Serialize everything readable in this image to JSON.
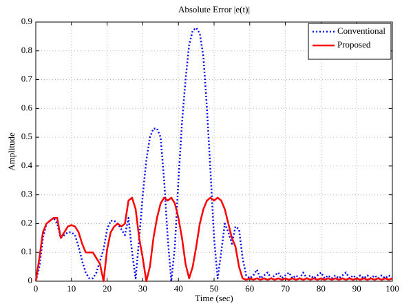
{
  "chart_data": {
    "type": "line",
    "title": "Absolute Error |e(t)|",
    "x_label": "Time (sec)",
    "y_label": "Amplitude",
    "x": [
      0,
      1,
      2,
      3,
      4,
      5,
      6,
      7,
      8,
      9,
      10,
      11,
      12,
      13,
      14,
      15,
      16,
      17,
      18,
      19,
      20,
      21,
      22,
      23,
      24,
      25,
      26,
      27,
      28,
      29,
      30,
      31,
      32,
      33,
      34,
      35,
      36,
      37,
      38,
      39,
      40,
      41,
      42,
      43,
      44,
      45,
      46,
      47,
      48,
      49,
      50,
      51,
      52,
      53,
      54,
      55,
      56,
      57,
      58,
      59,
      60,
      61,
      62,
      63,
      64,
      65,
      66,
      67,
      68,
      69,
      70,
      71,
      72,
      73,
      74,
      75,
      76,
      77,
      78,
      79,
      80,
      81,
      82,
      83,
      84,
      85,
      86,
      87,
      88,
      89,
      90,
      91,
      92,
      93,
      94,
      95,
      96,
      97,
      98,
      99,
      100
    ],
    "series": [
      {
        "name": "Conventional",
        "color": "#0000ff",
        "dash": "dotted",
        "values": [
          0,
          0.05,
          0.15,
          0.2,
          0.21,
          0.22,
          0.2,
          0.15,
          0.16,
          0.17,
          0.17,
          0.16,
          0.12,
          0.07,
          0.03,
          0.01,
          0.01,
          0.03,
          0.07,
          0.11,
          0.18,
          0.21,
          0.21,
          0.2,
          0.18,
          0.16,
          0.22,
          0.1,
          0.01,
          0.15,
          0.3,
          0.42,
          0.5,
          0.53,
          0.53,
          0.5,
          0.35,
          0.15,
          0,
          0.12,
          0.35,
          0.55,
          0.7,
          0.82,
          0.87,
          0.88,
          0.86,
          0.78,
          0.6,
          0.38,
          0.15,
          0.01,
          0.1,
          0.2,
          0.17,
          0.13,
          0.19,
          0.18,
          0.08,
          0.02,
          0.01,
          0.02,
          0.04,
          0.01,
          0.02,
          0.03,
          0.01,
          0.02,
          0.03,
          0.01,
          0.02,
          0.03,
          0.01,
          0.02,
          0.01,
          0.03,
          0.01,
          0.02,
          0.01,
          0.02,
          0.03,
          0.01,
          0.02,
          0.01,
          0.02,
          0.01,
          0.02,
          0.03,
          0.01,
          0.02,
          0.01,
          0.02,
          0.01,
          0.02,
          0.01,
          0.02,
          0.01,
          0.02,
          0.01,
          0.02,
          0.01
        ]
      },
      {
        "name": "Proposed",
        "color": "#ff0000",
        "dash": "solid",
        "values": [
          0,
          0.08,
          0.17,
          0.2,
          0.21,
          0.22,
          0.22,
          0.15,
          0.17,
          0.19,
          0.195,
          0.19,
          0.17,
          0.13,
          0.1,
          0.1,
          0.1,
          0.08,
          0.06,
          0,
          0.11,
          0.17,
          0.19,
          0.2,
          0.19,
          0.2,
          0.28,
          0.29,
          0.25,
          0.15,
          0.08,
          0,
          0.05,
          0.15,
          0.22,
          0.27,
          0.29,
          0.28,
          0.29,
          0.27,
          0.22,
          0.15,
          0.06,
          0.01,
          0.05,
          0.12,
          0.2,
          0.25,
          0.28,
          0.29,
          0.28,
          0.29,
          0.28,
          0.25,
          0.2,
          0.15,
          0.12,
          0.05,
          0.01,
          0.005,
          0.01,
          0.005,
          0.01,
          0.005,
          0.01,
          0.005,
          0.01,
          0.005,
          0.01,
          0.005,
          0.01,
          0.005,
          0.01,
          0.005,
          0.01,
          0.005,
          0.01,
          0.005,
          0.01,
          0.005,
          0.01,
          0.005,
          0.01,
          0.005,
          0.01,
          0.005,
          0.01,
          0.005,
          0.01,
          0.005,
          0.01,
          0.005,
          0.01,
          0.005,
          0.01,
          0.005,
          0.01,
          0.005,
          0.01,
          0.005,
          0.01
        ]
      }
    ],
    "xlim": [
      0,
      100
    ],
    "xticks": [
      0,
      10,
      20,
      30,
      40,
      50,
      60,
      70,
      80,
      90,
      100
    ],
    "ylim": [
      0,
      0.9
    ],
    "yticks": [
      0,
      0.1,
      0.2,
      0.3,
      0.4,
      0.5,
      0.6,
      0.7,
      0.8,
      0.9
    ],
    "grid": true,
    "legend": "upper right"
  }
}
